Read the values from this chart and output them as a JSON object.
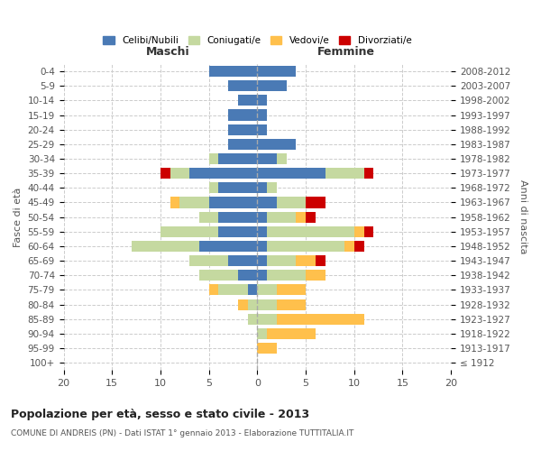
{
  "age_groups": [
    "0-4",
    "5-9",
    "10-14",
    "15-19",
    "20-24",
    "25-29",
    "30-34",
    "35-39",
    "40-44",
    "45-49",
    "50-54",
    "55-59",
    "60-64",
    "65-69",
    "70-74",
    "75-79",
    "80-84",
    "85-89",
    "90-94",
    "95-99",
    "100+"
  ],
  "birth_years": [
    "2008-2012",
    "2003-2007",
    "1998-2002",
    "1993-1997",
    "1988-1992",
    "1983-1987",
    "1978-1982",
    "1973-1977",
    "1968-1972",
    "1963-1967",
    "1958-1962",
    "1953-1957",
    "1948-1952",
    "1943-1947",
    "1938-1942",
    "1933-1937",
    "1928-1932",
    "1923-1927",
    "1918-1922",
    "1913-1917",
    "≤ 1912"
  ],
  "colors": {
    "celibe": "#4a7ab5",
    "coniugato": "#c5d9a0",
    "vedovo": "#ffc04c",
    "divorziato": "#cc0000"
  },
  "males": {
    "celibe": [
      5,
      3,
      2,
      3,
      3,
      3,
      4,
      7,
      4,
      5,
      4,
      4,
      6,
      3,
      2,
      1,
      0,
      0,
      0,
      0,
      0
    ],
    "coniugato": [
      0,
      0,
      0,
      0,
      0,
      0,
      1,
      2,
      1,
      3,
      2,
      6,
      7,
      4,
      4,
      3,
      1,
      1,
      0,
      0,
      0
    ],
    "vedovo": [
      0,
      0,
      0,
      0,
      0,
      0,
      0,
      0,
      0,
      1,
      0,
      0,
      0,
      0,
      0,
      1,
      1,
      0,
      0,
      0,
      0
    ],
    "divorziato": [
      0,
      0,
      0,
      0,
      0,
      0,
      0,
      1,
      0,
      0,
      0,
      0,
      0,
      0,
      0,
      0,
      0,
      0,
      0,
      0,
      0
    ]
  },
  "females": {
    "nubile": [
      4,
      3,
      1,
      1,
      1,
      4,
      2,
      7,
      1,
      2,
      1,
      1,
      1,
      1,
      1,
      0,
      0,
      0,
      0,
      0,
      0
    ],
    "coniugata": [
      0,
      0,
      0,
      0,
      0,
      0,
      1,
      4,
      1,
      3,
      3,
      9,
      8,
      3,
      4,
      2,
      2,
      2,
      1,
      0,
      0
    ],
    "vedova": [
      0,
      0,
      0,
      0,
      0,
      0,
      0,
      0,
      0,
      0,
      1,
      1,
      1,
      2,
      2,
      3,
      3,
      9,
      5,
      2,
      0
    ],
    "divorziata": [
      0,
      0,
      0,
      0,
      0,
      0,
      0,
      1,
      0,
      2,
      1,
      1,
      1,
      1,
      0,
      0,
      0,
      0,
      0,
      0,
      0
    ]
  },
  "title": "Popolazione per età, sesso e stato civile - 2013",
  "subtitle": "COMUNE DI ANDREIS (PN) - Dati ISTAT 1° gennaio 2013 - Elaborazione TUTTITALIA.IT",
  "xlabel_left": "Maschi",
  "xlabel_right": "Femmine",
  "ylabel_left": "Fasce di età",
  "ylabel_right": "Anni di nascita",
  "xlim": 20,
  "legend_labels": [
    "Celibi/Nubili",
    "Coniugati/e",
    "Vedovi/e",
    "Divorziati/e"
  ],
  "bg_color": "#ffffff",
  "grid_color": "#cccccc"
}
